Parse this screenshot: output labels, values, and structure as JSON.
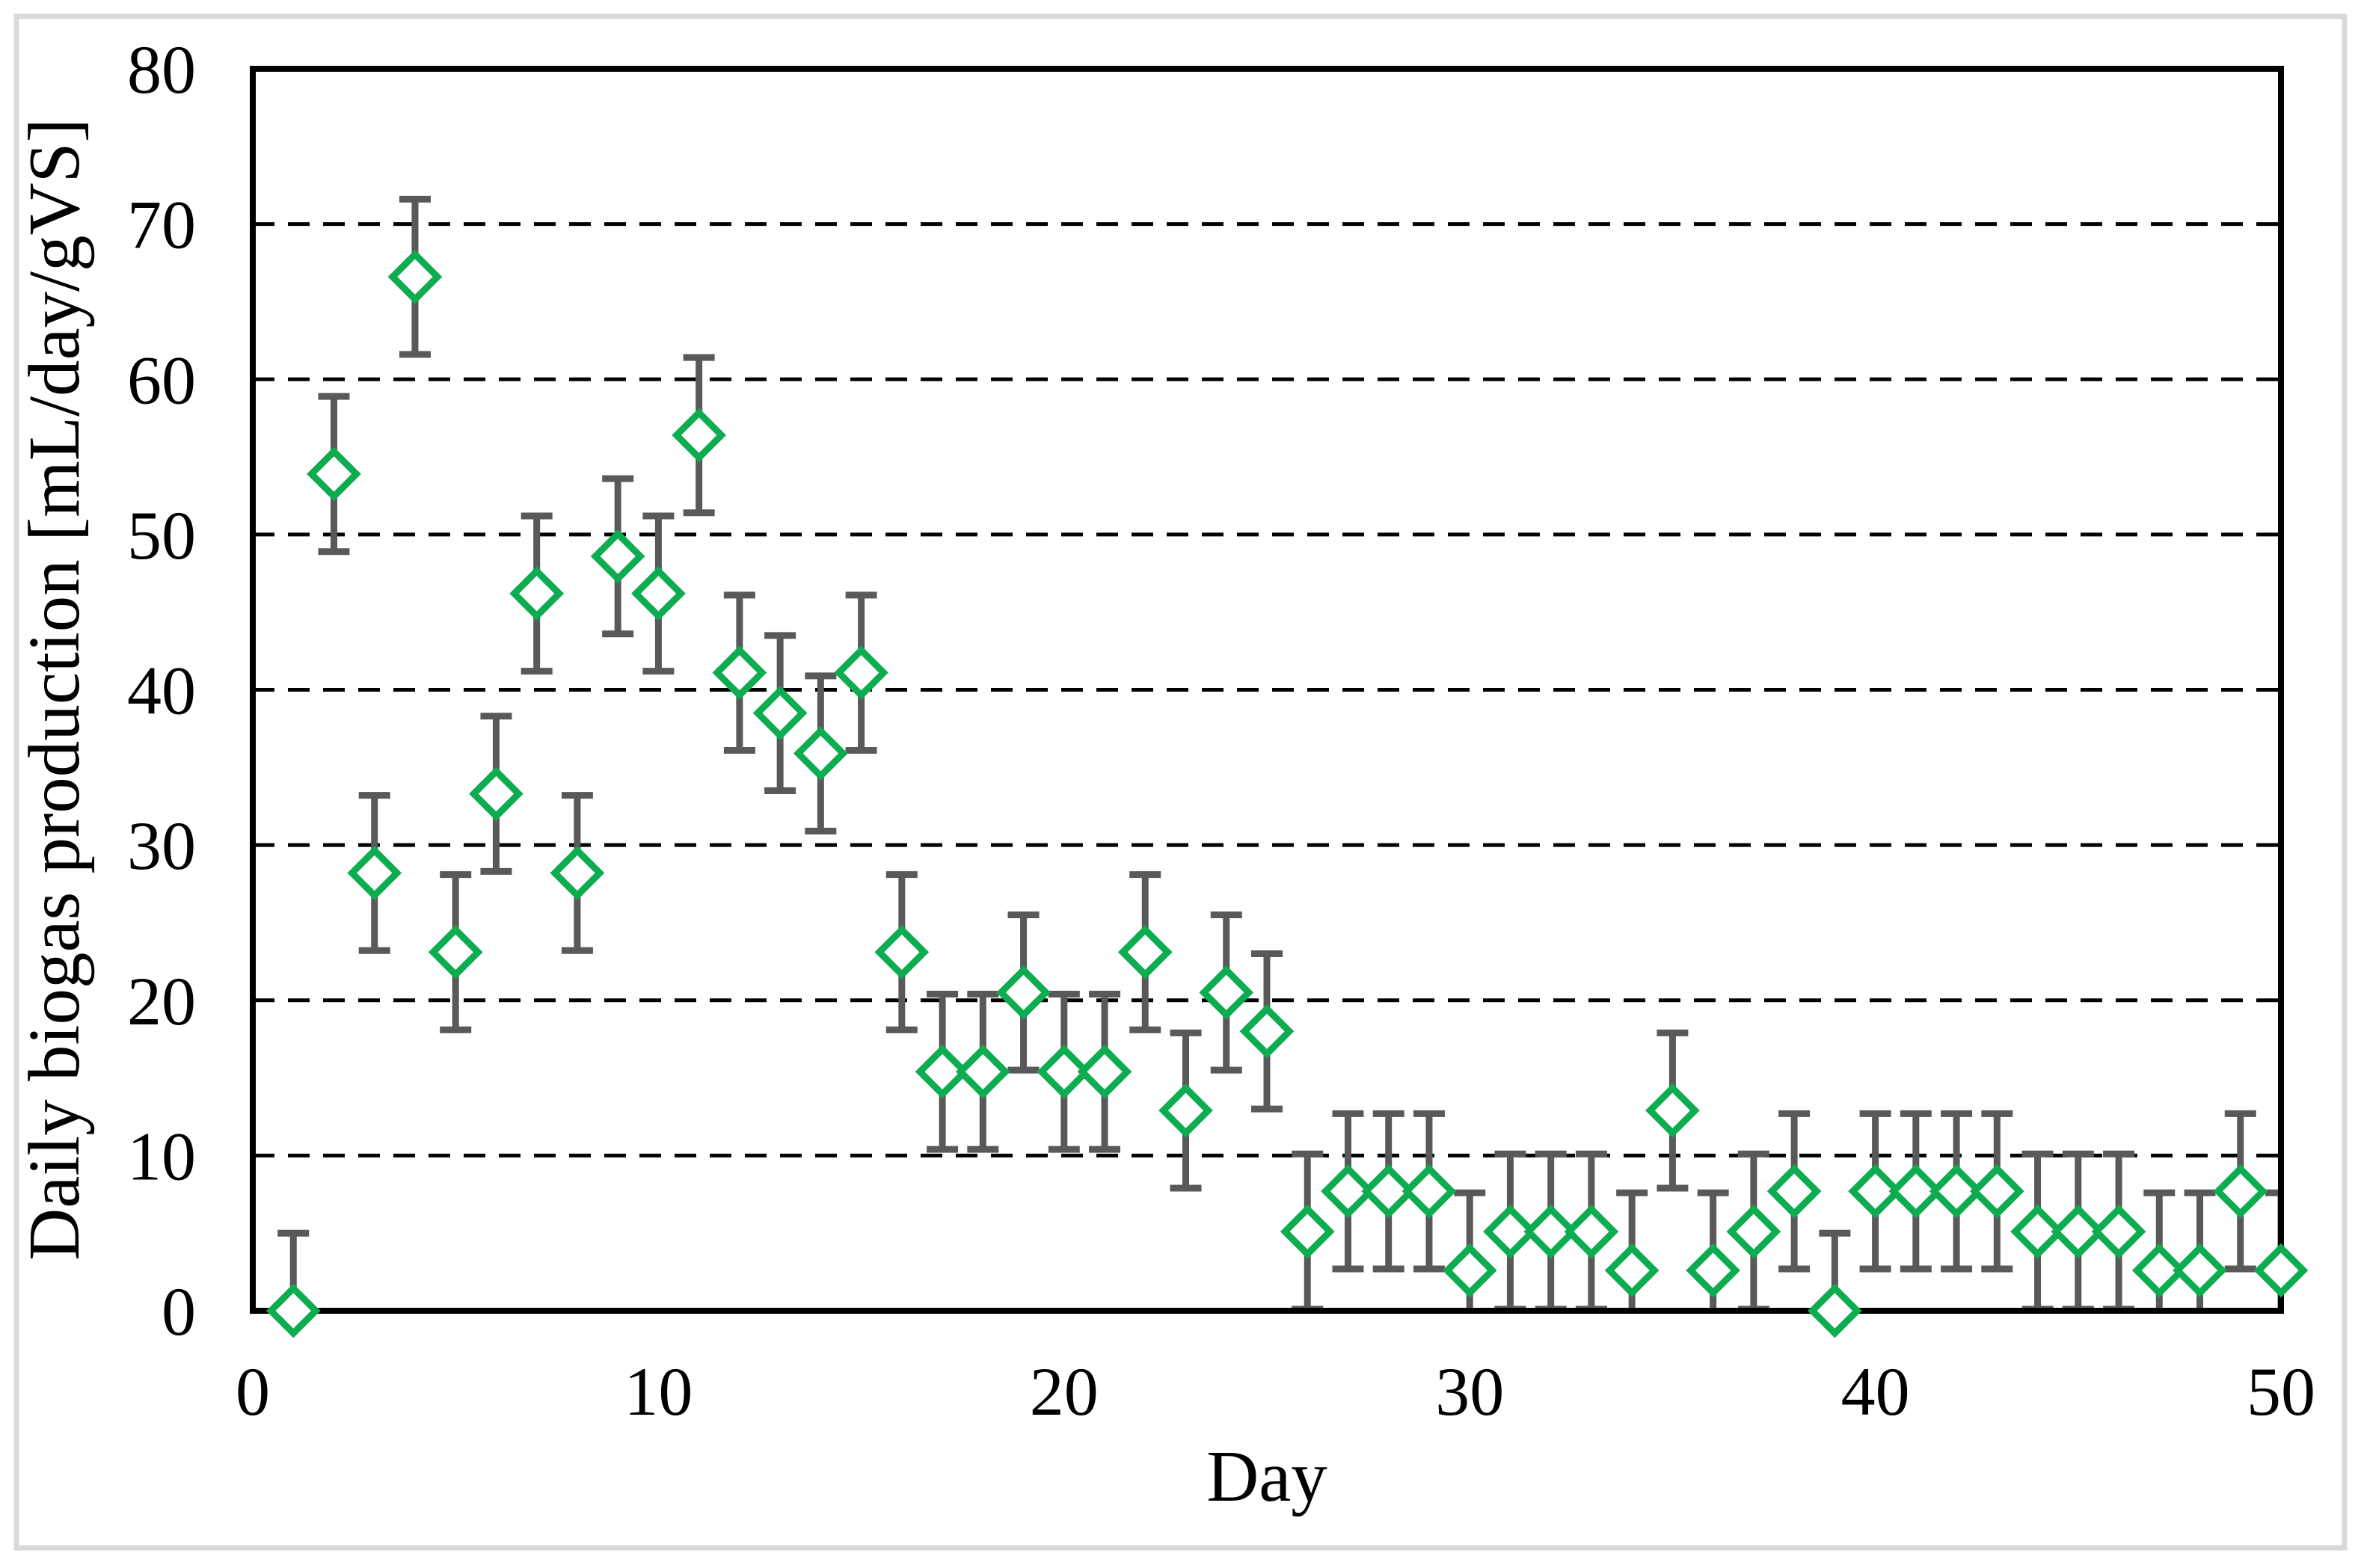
{
  "figure": {
    "background": "#ffffff",
    "border_color": "#d9d9d9"
  },
  "chart_data": {
    "type": "scatter",
    "title": "",
    "xlabel": "Day",
    "ylabel": "Daily biogas production [mL/day/gVS]",
    "xlim": [
      0,
      50
    ],
    "ylim": [
      0,
      80
    ],
    "x_ticks": [
      0,
      10,
      20,
      30,
      40,
      50
    ],
    "y_ticks": [
      0,
      10,
      20,
      30,
      40,
      50,
      60,
      70,
      80
    ],
    "grid": "horizontal-dashed",
    "legend": "none",
    "marker": "open-diamond",
    "error_bar_plus_minus": 5,
    "colors": {
      "marker": "#0eac50",
      "error_bar": "#595959",
      "axis": "#000000",
      "gridline": "#000000",
      "figure_border": "#d9d9d9"
    },
    "x": [
      1,
      2,
      3,
      4,
      5,
      6,
      7,
      8,
      9,
      10,
      11,
      12,
      13,
      14,
      15,
      16,
      17,
      18,
      19,
      20,
      21,
      22,
      23,
      24,
      25,
      26,
      27,
      28,
      29,
      30,
      31,
      32,
      33,
      34,
      35,
      36,
      37,
      38,
      39,
      40,
      41,
      42,
      43,
      44,
      45,
      46,
      47,
      48,
      49,
      50
    ],
    "y": [
      0.0,
      53.9,
      28.2,
      66.6,
      23.1,
      33.3,
      46.2,
      28.2,
      48.6,
      46.2,
      56.4,
      41.1,
      38.5,
      35.9,
      41.1,
      23.1,
      15.4,
      15.4,
      20.5,
      15.4,
      15.4,
      23.1,
      12.9,
      20.5,
      18.0,
      5.1,
      7.7,
      7.7,
      7.7,
      2.6,
      5.1,
      5.1,
      5.1,
      2.6,
      12.9,
      2.6,
      5.1,
      7.7,
      0.0,
      7.7,
      7.7,
      7.7,
      7.7,
      5.1,
      5.1,
      5.1,
      2.6,
      2.6,
      7.7,
      2.6
    ]
  }
}
